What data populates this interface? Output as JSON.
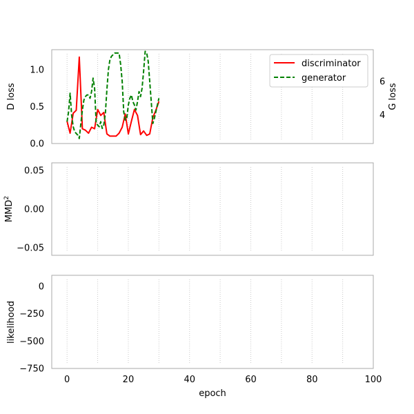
{
  "chart_data": [
    {
      "type": "line",
      "ylabel_left": "D loss",
      "ylabel_right": "G loss",
      "xlim": [
        -5,
        100
      ],
      "ylim_left": [
        0,
        1.27
      ],
      "ylim_right": [
        2.3,
        7.9
      ],
      "yticks_left": [
        "0.0",
        "0.5",
        "1.0"
      ],
      "yticks_left_values": [
        0,
        0.5,
        1.0
      ],
      "yticks_right": [
        "4",
        "6"
      ],
      "yticks_right_values": [
        4,
        6
      ],
      "grid": "vertical dotted",
      "legend": {
        "placement": "top-right",
        "entries": [
          "discriminator",
          "generator"
        ]
      },
      "series": [
        {
          "name": "discriminator",
          "axis": "left",
          "color": "#ff0000",
          "style": "solid",
          "x": [
            0,
            1,
            2,
            3,
            4,
            5,
            6,
            7,
            8,
            9,
            10,
            11,
            12,
            13,
            14,
            15,
            16,
            17,
            18,
            19,
            20,
            21,
            22,
            23,
            24,
            25,
            26,
            27,
            28,
            29,
            30
          ],
          "y": [
            0.3,
            0.14,
            0.41,
            0.45,
            1.17,
            0.2,
            0.18,
            0.14,
            0.22,
            0.2,
            0.46,
            0.38,
            0.42,
            0.13,
            0.1,
            0.1,
            0.1,
            0.14,
            0.22,
            0.4,
            0.13,
            0.3,
            0.46,
            0.38,
            0.12,
            0.17,
            0.11,
            0.13,
            0.35,
            0.45,
            0.57
          ]
        },
        {
          "name": "generator",
          "axis": "right",
          "color": "#008000",
          "style": "dashed",
          "x": [
            0,
            0.5,
            1,
            1.5,
            2,
            2.5,
            3,
            3.5,
            4,
            4.5,
            5,
            5.5,
            6,
            6.5,
            7,
            7.5,
            8,
            8.5,
            9,
            9.5,
            10,
            10.5,
            11,
            11.5,
            12,
            12.5,
            13,
            13.5,
            14,
            14.5,
            15,
            15.5,
            16,
            16.5,
            17,
            17.5,
            18,
            18.5,
            19,
            19.5,
            20,
            20.5,
            21,
            21.5,
            22,
            22.5,
            23,
            23.5,
            24,
            24.5,
            25,
            25.5,
            26,
            26.5,
            27,
            27.5,
            28,
            28.5,
            29,
            29.5,
            30
          ],
          "y": [
            3.6,
            4.2,
            5.3,
            4.0,
            3.3,
            3.0,
            2.9,
            2.8,
            2.6,
            3.5,
            4.3,
            4.9,
            5.1,
            5.2,
            5.2,
            5.0,
            5.4,
            6.2,
            5.6,
            3.5,
            3.4,
            3.3,
            3.6,
            3.2,
            3.4,
            4.1,
            5.5,
            6.7,
            7.3,
            7.5,
            7.6,
            7.7,
            7.7,
            7.7,
            7.7,
            7.0,
            6.0,
            4.2,
            3.7,
            3.8,
            4.6,
            5.0,
            5.2,
            4.8,
            4.6,
            4.3,
            4.8,
            5.4,
            5.1,
            5.6,
            6.6,
            7.8,
            7.7,
            7.2,
            6.0,
            4.8,
            3.5,
            3.8,
            4.2,
            4.6,
            5.0
          ]
        }
      ]
    },
    {
      "type": "line",
      "ylabel": "MMD",
      "ylabel_sup": "2",
      "xlim": [
        -5,
        100
      ],
      "ylim": [
        -0.06,
        0.06
      ],
      "yticks": [
        "0.05",
        "0.00",
        "−0.05"
      ],
      "ytick_values": [
        0.05,
        0,
        -0.05
      ],
      "grid": "vertical dotted",
      "series": []
    },
    {
      "type": "line",
      "ylabel": "likelihood",
      "xlabel": "epoch",
      "xlim": [
        -5,
        100
      ],
      "ylim": [
        -750,
        100
      ],
      "xticks": [
        "0",
        "20",
        "40",
        "60",
        "80",
        "100"
      ],
      "xtick_values": [
        0,
        20,
        40,
        60,
        80,
        100
      ],
      "yticks": [
        "0",
        "−250",
        "−500",
        "−750"
      ],
      "ytick_values": [
        0,
        -250,
        -500,
        -750
      ],
      "grid": "vertical dotted",
      "series": []
    }
  ]
}
